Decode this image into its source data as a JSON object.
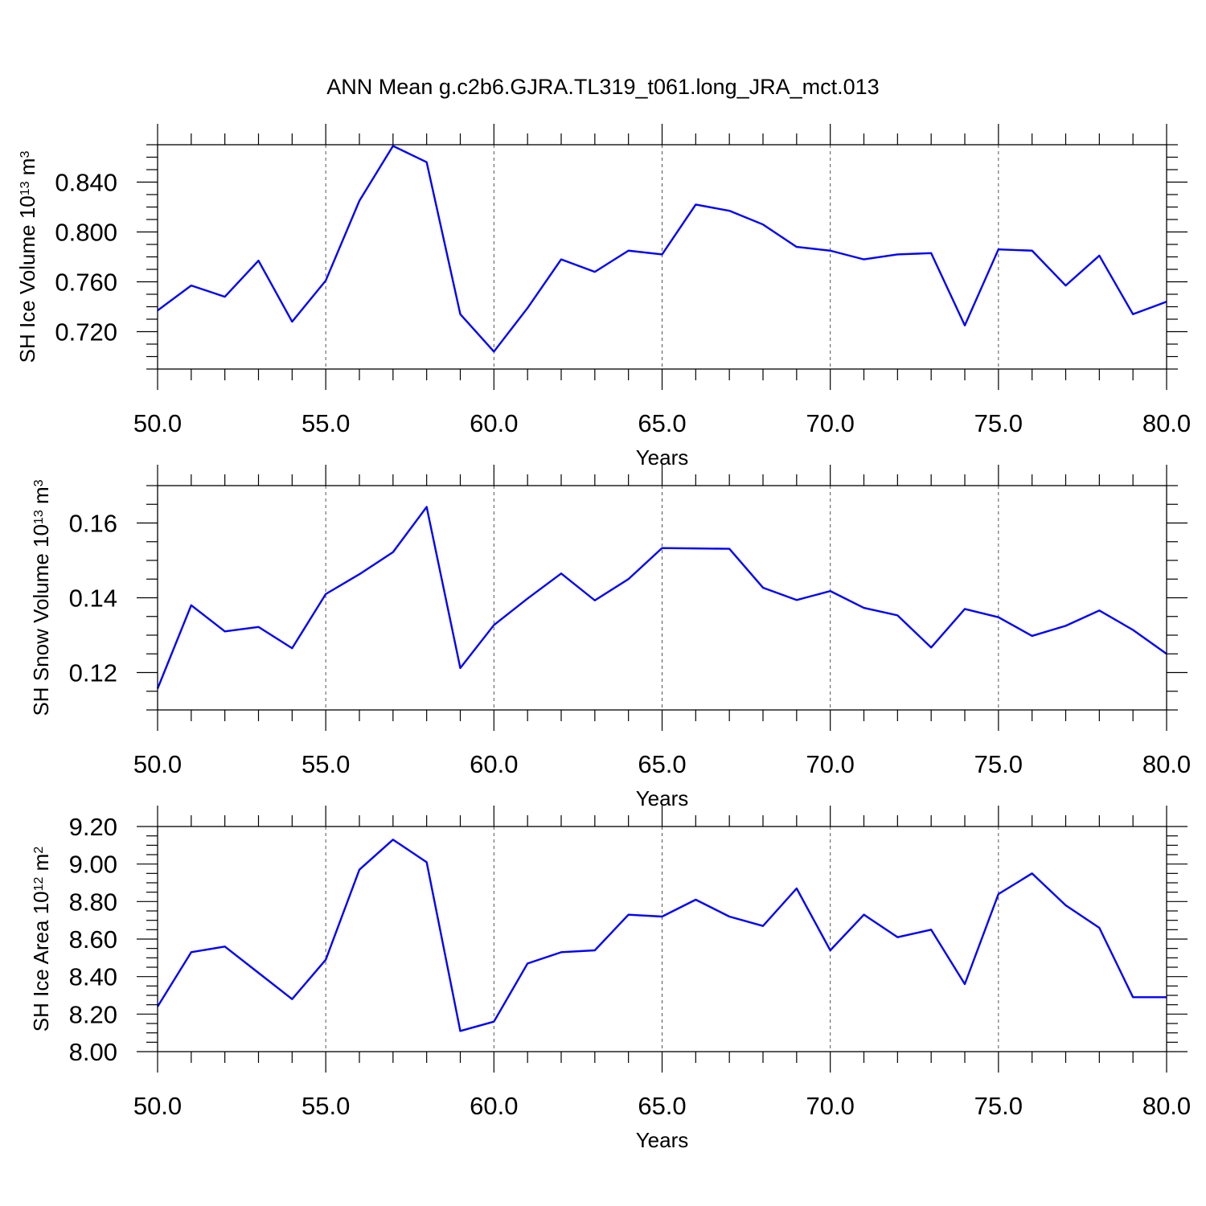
{
  "chart_data": {
    "type": "line",
    "title": "ANN Mean g.c2b6.GJRA.TL319_t061.long_JRA_mct.013",
    "panels": [
      {
        "ylabel": "SH Ice Volume 10",
        "ylabel_exp": "13",
        "ylabel_unit": " m",
        "ylabel_unit_exp": "3",
        "xlabel": "Years",
        "xlim": [
          50,
          80
        ],
        "ylim": [
          0.69,
          0.87
        ],
        "xticks": [
          "50.0",
          "55.0",
          "60.0",
          "65.0",
          "70.0",
          "75.0",
          "80.0"
        ],
        "yticks": [
          "0.720",
          "0.760",
          "0.800",
          "0.840"
        ],
        "series": [
          {
            "x": [
              50,
              51,
              52,
              53,
              54,
              55,
              56,
              57,
              58,
              59,
              60,
              61,
              62,
              63,
              64,
              65,
              66,
              67,
              68,
              69,
              70,
              71,
              72,
              73,
              74,
              75,
              76,
              77,
              78,
              79,
              80
            ],
            "values": [
              0.737,
              0.757,
              0.748,
              0.777,
              0.728,
              0.761,
              0.825,
              0.869,
              0.856,
              0.734,
              0.704,
              0.739,
              0.778,
              0.768,
              0.785,
              0.782,
              0.822,
              0.817,
              0.806,
              0.788,
              0.785,
              0.778,
              0.782,
              0.783,
              0.725,
              0.786,
              0.785,
              0.757,
              0.781,
              0.734,
              0.744
            ]
          }
        ]
      },
      {
        "ylabel": "SH Snow Volume 10",
        "ylabel_exp": "13",
        "ylabel_unit": " m",
        "ylabel_unit_exp": "3",
        "xlabel": "Years",
        "xlim": [
          50,
          80
        ],
        "ylim": [
          0.11,
          0.17
        ],
        "xticks": [
          "50.0",
          "55.0",
          "60.0",
          "65.0",
          "70.0",
          "75.0",
          "80.0"
        ],
        "yticks": [
          "0.12",
          "0.14",
          "0.16"
        ],
        "series": [
          {
            "x": [
              50,
              51,
              52,
              53,
              54,
              55,
              56,
              57,
              58,
              59,
              60,
              61,
              62,
              63,
              64,
              65,
              66,
              67,
              68,
              69,
              70,
              71,
              72,
              73,
              74,
              75,
              76,
              77,
              78,
              79,
              80
            ],
            "values": [
              0.1157,
              0.138,
              0.131,
              0.1322,
              0.1265,
              0.141,
              0.1463,
              0.1522,
              0.1643,
              0.1212,
              0.1327,
              0.1398,
              0.1465,
              0.1393,
              0.145,
              0.1533,
              0.1532,
              0.1531,
              0.1427,
              0.1394,
              0.1418,
              0.1373,
              0.1353,
              0.1267,
              0.137,
              0.1348,
              0.1298,
              0.1325,
              0.1366,
              0.1314,
              0.125
            ]
          }
        ]
      },
      {
        "ylabel": "SH Ice Area 10",
        "ylabel_exp": "12",
        "ylabel_unit": " m",
        "ylabel_unit_exp": "2",
        "xlabel": "Years",
        "xlim": [
          50,
          80
        ],
        "ylim": [
          8.0,
          9.2
        ],
        "xticks": [
          "50.0",
          "55.0",
          "60.0",
          "65.0",
          "70.0",
          "75.0",
          "80.0"
        ],
        "yticks": [
          "8.00",
          "8.20",
          "8.40",
          "8.60",
          "8.80",
          "9.00",
          "9.20"
        ],
        "series": [
          {
            "x": [
              50,
              51,
              52,
              53,
              54,
              55,
              56,
              57,
              58,
              59,
              60,
              61,
              62,
              63,
              64,
              65,
              66,
              67,
              68,
              69,
              70,
              71,
              72,
              73,
              74,
              75,
              76,
              77,
              78,
              79,
              80
            ],
            "values": [
              8.24,
              8.53,
              8.56,
              8.42,
              8.28,
              8.49,
              8.97,
              9.13,
              9.01,
              8.11,
              8.16,
              8.47,
              8.53,
              8.54,
              8.73,
              8.72,
              8.81,
              8.72,
              8.67,
              8.87,
              8.54,
              8.73,
              8.61,
              8.65,
              8.36,
              8.84,
              8.95,
              8.78,
              8.66,
              8.29,
              8.29
            ]
          }
        ]
      }
    ]
  }
}
